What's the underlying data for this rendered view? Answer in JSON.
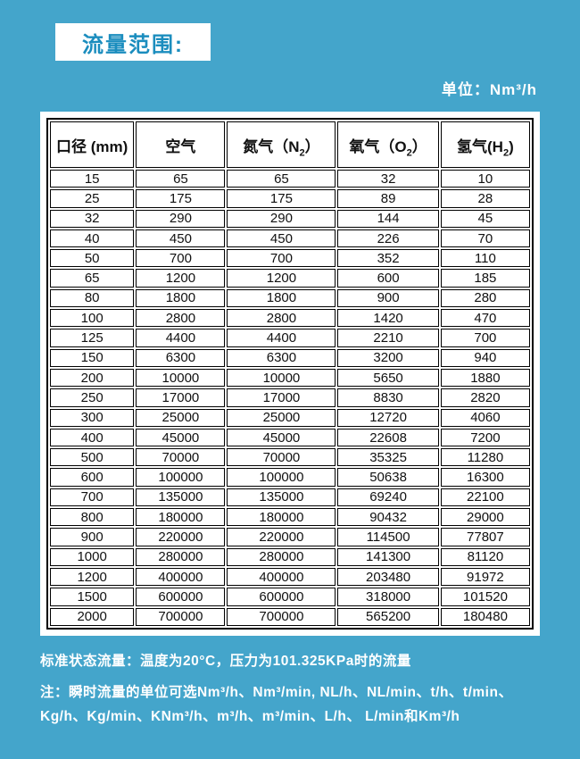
{
  "header": {
    "title": "流量范围:",
    "unit_label": "单位：Nm³/h"
  },
  "table": {
    "headers": [
      {
        "pre": "口径 (mm)",
        "sub": "",
        "post": ""
      },
      {
        "pre": "空气",
        "sub": "",
        "post": ""
      },
      {
        "pre": "氮气（N",
        "sub": "2",
        "post": "）"
      },
      {
        "pre": "氧气（O",
        "sub": "2",
        "post": "）"
      },
      {
        "pre": "氢气(H",
        "sub": "2",
        "post": ")"
      }
    ],
    "rows": [
      [
        "15",
        "65",
        "65",
        "32",
        "10"
      ],
      [
        "25",
        "175",
        "175",
        "89",
        "28"
      ],
      [
        "32",
        "290",
        "290",
        "144",
        "45"
      ],
      [
        "40",
        "450",
        "450",
        "226",
        "70"
      ],
      [
        "50",
        "700",
        "700",
        "352",
        "110"
      ],
      [
        "65",
        "1200",
        "1200",
        "600",
        "185"
      ],
      [
        "80",
        "1800",
        "1800",
        "900",
        "280"
      ],
      [
        "100",
        "2800",
        "2800",
        "1420",
        "470"
      ],
      [
        "125",
        "4400",
        "4400",
        "2210",
        "700"
      ],
      [
        "150",
        "6300",
        "6300",
        "3200",
        "940"
      ],
      [
        "200",
        "10000",
        "10000",
        "5650",
        "1880"
      ],
      [
        "250",
        "17000",
        "17000",
        "8830",
        "2820"
      ],
      [
        "300",
        "25000",
        "25000",
        "12720",
        "4060"
      ],
      [
        "400",
        "45000",
        "45000",
        "22608",
        "7200"
      ],
      [
        "500",
        "70000",
        "70000",
        "35325",
        "11280"
      ],
      [
        "600",
        "100000",
        "100000",
        "50638",
        "16300"
      ],
      [
        "700",
        "135000",
        "135000",
        "69240",
        "22100"
      ],
      [
        "800",
        "180000",
        "180000",
        "90432",
        "29000"
      ],
      [
        "900",
        "220000",
        "220000",
        "114500",
        "77807"
      ],
      [
        "1000",
        "280000",
        "280000",
        "141300",
        "81120"
      ],
      [
        "1200",
        "400000",
        "400000",
        "203480",
        "91972"
      ],
      [
        "1500",
        "600000",
        "600000",
        "318000",
        "101520"
      ],
      [
        "2000",
        "700000",
        "700000",
        "565200",
        "180480"
      ]
    ]
  },
  "notes": {
    "standard": "标准状态流量：温度为20°C，压力为101.325KPa时的流量",
    "units_line1": "注：瞬时流量的单位可选Nm³/h、Nm³/min, NL/h、NL/min、t/h、t/min、",
    "units_line2": "Kg/h、Kg/min、KNm³/h、m³/h、m³/min、L/h、 L/min和Km³/h"
  },
  "colors": {
    "background": "#44a5cb",
    "title_text": "#1b8dbe",
    "panel_bg": "#ffffff",
    "table_border": "#000000",
    "note_text": "#ffffff"
  }
}
